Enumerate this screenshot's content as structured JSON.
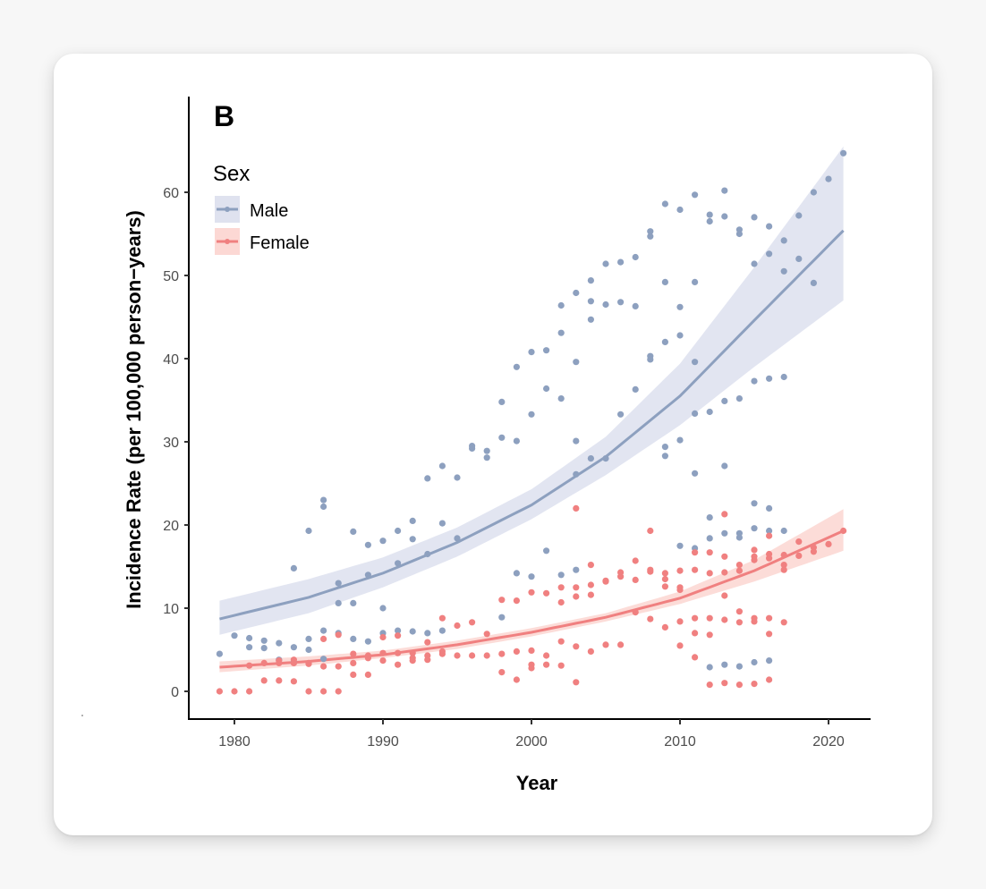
{
  "panel_tag": "B",
  "colors": {
    "male": "#8da0bf",
    "male_ribbon": "#dfe2ef",
    "female": "#f08080",
    "female_ribbon": "#fcd8d4",
    "axis": "#000000",
    "tick_text": "#4d4d4d"
  },
  "chart_data": {
    "type": "scatter",
    "title": "",
    "xlabel": "Year",
    "ylabel": "Incidence Rate (per 100,000 person−years)",
    "xlim": [
      1977.5,
      2022.5
    ],
    "ylim": [
      -3.2,
      71
    ],
    "x_ticks": [
      1980,
      1990,
      2000,
      2010,
      2020
    ],
    "y_ticks": [
      0,
      10,
      20,
      30,
      40,
      50,
      60
    ],
    "grid": false,
    "legend": {
      "title": "Sex",
      "position": "top-left",
      "entries": [
        "Male",
        "Female"
      ]
    },
    "series": [
      {
        "name": "Male",
        "points": [
          [
            1979,
            4.5
          ],
          [
            1980,
            6.7
          ],
          [
            1981,
            6.4
          ],
          [
            1981,
            5.3
          ],
          [
            1982,
            6.1
          ],
          [
            1982,
            5.2
          ],
          [
            1983,
            5.8
          ],
          [
            1983,
            3.8
          ],
          [
            1984,
            14.8
          ],
          [
            1984,
            5.3
          ],
          [
            1984,
            3.5
          ],
          [
            1985,
            19.3
          ],
          [
            1985,
            6.3
          ],
          [
            1985,
            5.0
          ],
          [
            1986,
            23.0
          ],
          [
            1986,
            22.2
          ],
          [
            1986,
            7.3
          ],
          [
            1986,
            3.9
          ],
          [
            1987,
            13.0
          ],
          [
            1987,
            10.6
          ],
          [
            1987,
            7.0
          ],
          [
            1988,
            19.2
          ],
          [
            1988,
            10.6
          ],
          [
            1988,
            6.3
          ],
          [
            1989,
            17.6
          ],
          [
            1989,
            14.0
          ],
          [
            1989,
            6.0
          ],
          [
            1990,
            18.1
          ],
          [
            1990,
            10.0
          ],
          [
            1990,
            7.0
          ],
          [
            1991,
            19.3
          ],
          [
            1991,
            15.4
          ],
          [
            1991,
            7.3
          ],
          [
            1992,
            20.5
          ],
          [
            1992,
            18.3
          ],
          [
            1992,
            7.2
          ],
          [
            1993,
            25.6
          ],
          [
            1993,
            16.5
          ],
          [
            1993,
            7.0
          ],
          [
            1994,
            27.1
          ],
          [
            1994,
            20.2
          ],
          [
            1994,
            7.3
          ],
          [
            1995,
            25.7
          ],
          [
            1995,
            18.4
          ],
          [
            1996,
            29.5
          ],
          [
            1996,
            29.2
          ],
          [
            1997,
            28.9
          ],
          [
            1997,
            28.1
          ],
          [
            1998,
            34.8
          ],
          [
            1998,
            30.5
          ],
          [
            1998,
            8.9
          ],
          [
            1999,
            39.0
          ],
          [
            1999,
            30.1
          ],
          [
            1999,
            14.2
          ],
          [
            2000,
            40.8
          ],
          [
            2000,
            33.3
          ],
          [
            2000,
            13.8
          ],
          [
            2001,
            41.0
          ],
          [
            2001,
            36.4
          ],
          [
            2001,
            16.9
          ],
          [
            2002,
            46.4
          ],
          [
            2002,
            43.1
          ],
          [
            2002,
            35.2
          ],
          [
            2002,
            14.0
          ],
          [
            2003,
            47.9
          ],
          [
            2003,
            39.6
          ],
          [
            2003,
            30.1
          ],
          [
            2003,
            26.1
          ],
          [
            2003,
            14.6
          ],
          [
            2004,
            49.4
          ],
          [
            2004,
            46.9
          ],
          [
            2004,
            44.7
          ],
          [
            2004,
            28.0
          ],
          [
            2005,
            51.4
          ],
          [
            2005,
            46.5
          ],
          [
            2005,
            28.0
          ],
          [
            2006,
            51.6
          ],
          [
            2006,
            46.8
          ],
          [
            2006,
            33.3
          ],
          [
            2007,
            52.2
          ],
          [
            2007,
            46.3
          ],
          [
            2007,
            36.3
          ],
          [
            2008,
            55.3
          ],
          [
            2008,
            54.7
          ],
          [
            2008,
            40.3
          ],
          [
            2008,
            39.9
          ],
          [
            2009,
            58.6
          ],
          [
            2009,
            49.2
          ],
          [
            2009,
            42.0
          ],
          [
            2009,
            29.4
          ],
          [
            2009,
            28.3
          ],
          [
            2010,
            57.9
          ],
          [
            2010,
            46.2
          ],
          [
            2010,
            42.8
          ],
          [
            2010,
            30.2
          ],
          [
            2010,
            17.5
          ],
          [
            2011,
            59.7
          ],
          [
            2011,
            49.2
          ],
          [
            2011,
            39.6
          ],
          [
            2011,
            33.4
          ],
          [
            2011,
            26.2
          ],
          [
            2011,
            17.2
          ],
          [
            2012,
            57.3
          ],
          [
            2012,
            56.5
          ],
          [
            2012,
            33.6
          ],
          [
            2012,
            20.9
          ],
          [
            2012,
            18.4
          ],
          [
            2012,
            2.9
          ],
          [
            2013,
            60.2
          ],
          [
            2013,
            57.1
          ],
          [
            2013,
            34.9
          ],
          [
            2013,
            27.1
          ],
          [
            2013,
            19.0
          ],
          [
            2013,
            3.2
          ],
          [
            2014,
            55.5
          ],
          [
            2014,
            55.0
          ],
          [
            2014,
            35.2
          ],
          [
            2014,
            19.0
          ],
          [
            2014,
            18.5
          ],
          [
            2014,
            3.0
          ],
          [
            2015,
            57.0
          ],
          [
            2015,
            51.4
          ],
          [
            2015,
            37.3
          ],
          [
            2015,
            22.6
          ],
          [
            2015,
            19.6
          ],
          [
            2015,
            3.5
          ],
          [
            2016,
            55.9
          ],
          [
            2016,
            52.6
          ],
          [
            2016,
            37.6
          ],
          [
            2016,
            22.0
          ],
          [
            2016,
            19.3
          ],
          [
            2016,
            3.7
          ],
          [
            2017,
            54.2
          ],
          [
            2017,
            50.5
          ],
          [
            2017,
            37.8
          ],
          [
            2017,
            19.3
          ],
          [
            2018,
            57.2
          ],
          [
            2018,
            52.0
          ],
          [
            2019,
            60.0
          ],
          [
            2019,
            49.1
          ],
          [
            2020,
            61.6
          ],
          [
            2021,
            64.7
          ]
        ],
        "fit": {
          "x": [
            1979,
            1985,
            1990,
            1995,
            2000,
            2005,
            2010,
            2015,
            2021
          ],
          "y": [
            8.7,
            11.3,
            14.2,
            17.9,
            22.4,
            28.2,
            35.5,
            44.6,
            55.4
          ],
          "lower": [
            6.8,
            9.4,
            12.5,
            16.2,
            20.7,
            26.0,
            32.0,
            39.0,
            47.0
          ],
          "upper": [
            10.9,
            13.5,
            16.1,
            19.7,
            24.3,
            30.6,
            39.4,
            51.0,
            65.5
          ]
        }
      },
      {
        "name": "Female",
        "points": [
          [
            1979,
            0.0
          ],
          [
            1980,
            0.0
          ],
          [
            1981,
            0.0
          ],
          [
            1981,
            3.1
          ],
          [
            1982,
            3.4
          ],
          [
            1982,
            1.3
          ],
          [
            1983,
            3.4
          ],
          [
            1983,
            3.7
          ],
          [
            1983,
            1.3
          ],
          [
            1984,
            3.4
          ],
          [
            1984,
            3.8
          ],
          [
            1984,
            1.2
          ],
          [
            1985,
            3.4
          ],
          [
            1985,
            3.3
          ],
          [
            1985,
            0.0
          ],
          [
            1986,
            6.3
          ],
          [
            1986,
            3.0
          ],
          [
            1986,
            0.0
          ],
          [
            1987,
            3.0
          ],
          [
            1987,
            6.8
          ],
          [
            1987,
            0.0
          ],
          [
            1988,
            4.5
          ],
          [
            1988,
            3.4
          ],
          [
            1988,
            2.0
          ],
          [
            1989,
            4.3
          ],
          [
            1989,
            4.0
          ],
          [
            1989,
            2.0
          ],
          [
            1990,
            6.5
          ],
          [
            1990,
            4.6
          ],
          [
            1990,
            3.7
          ],
          [
            1991,
            6.7
          ],
          [
            1991,
            4.6
          ],
          [
            1991,
            3.2
          ],
          [
            1992,
            4.6
          ],
          [
            1992,
            4.0
          ],
          [
            1992,
            3.7
          ],
          [
            1993,
            5.9
          ],
          [
            1993,
            4.3
          ],
          [
            1993,
            3.8
          ],
          [
            1994,
            8.8
          ],
          [
            1994,
            4.8
          ],
          [
            1994,
            4.5
          ],
          [
            1995,
            7.9
          ],
          [
            1995,
            4.3
          ],
          [
            1996,
            8.3
          ],
          [
            1996,
            4.3
          ],
          [
            1997,
            6.9
          ],
          [
            1997,
            4.3
          ],
          [
            1998,
            11.0
          ],
          [
            1998,
            4.5
          ],
          [
            1998,
            2.3
          ],
          [
            1999,
            10.9
          ],
          [
            1999,
            4.8
          ],
          [
            1999,
            1.4
          ],
          [
            2000,
            11.9
          ],
          [
            2000,
            4.9
          ],
          [
            2000,
            3.2
          ],
          [
            2000,
            2.8
          ],
          [
            2001,
            11.8
          ],
          [
            2001,
            4.3
          ],
          [
            2001,
            3.2
          ],
          [
            2002,
            12.5
          ],
          [
            2002,
            10.7
          ],
          [
            2002,
            6.0
          ],
          [
            2002,
            3.1
          ],
          [
            2003,
            22.0
          ],
          [
            2003,
            12.5
          ],
          [
            2003,
            11.4
          ],
          [
            2003,
            5.4
          ],
          [
            2003,
            1.1
          ],
          [
            2004,
            15.2
          ],
          [
            2004,
            12.8
          ],
          [
            2004,
            11.6
          ],
          [
            2004,
            4.8
          ],
          [
            2005,
            13.2
          ],
          [
            2005,
            13.3
          ],
          [
            2005,
            5.6
          ],
          [
            2006,
            14.3
          ],
          [
            2006,
            13.8
          ],
          [
            2006,
            5.6
          ],
          [
            2007,
            15.7
          ],
          [
            2007,
            13.4
          ],
          [
            2007,
            9.5
          ],
          [
            2008,
            19.3
          ],
          [
            2008,
            14.4
          ],
          [
            2008,
            14.6
          ],
          [
            2008,
            8.7
          ],
          [
            2009,
            14.2
          ],
          [
            2009,
            13.5
          ],
          [
            2009,
            12.6
          ],
          [
            2009,
            7.7
          ],
          [
            2010,
            14.5
          ],
          [
            2010,
            12.5
          ],
          [
            2010,
            12.2
          ],
          [
            2010,
            8.4
          ],
          [
            2010,
            5.5
          ],
          [
            2011,
            16.7
          ],
          [
            2011,
            14.6
          ],
          [
            2011,
            8.8
          ],
          [
            2011,
            7.0
          ],
          [
            2011,
            4.1
          ],
          [
            2012,
            16.7
          ],
          [
            2012,
            14.2
          ],
          [
            2012,
            8.8
          ],
          [
            2012,
            6.8
          ],
          [
            2012,
            0.8
          ],
          [
            2013,
            21.3
          ],
          [
            2013,
            16.2
          ],
          [
            2013,
            14.3
          ],
          [
            2013,
            11.5
          ],
          [
            2013,
            8.6
          ],
          [
            2013,
            1.0
          ],
          [
            2014,
            15.2
          ],
          [
            2014,
            14.5
          ],
          [
            2014,
            9.6
          ],
          [
            2014,
            8.3
          ],
          [
            2014,
            0.8
          ],
          [
            2015,
            17.0
          ],
          [
            2015,
            16.2
          ],
          [
            2015,
            15.8
          ],
          [
            2015,
            8.8
          ],
          [
            2015,
            8.4
          ],
          [
            2015,
            0.9
          ],
          [
            2016,
            18.7
          ],
          [
            2016,
            16.5
          ],
          [
            2016,
            16.0
          ],
          [
            2016,
            8.8
          ],
          [
            2016,
            6.9
          ],
          [
            2016,
            1.4
          ],
          [
            2017,
            16.4
          ],
          [
            2017,
            15.2
          ],
          [
            2017,
            14.6
          ],
          [
            2017,
            8.3
          ],
          [
            2018,
            18.0
          ],
          [
            2018,
            16.3
          ],
          [
            2019,
            17.3
          ],
          [
            2019,
            16.8
          ],
          [
            2020,
            17.7
          ],
          [
            2021,
            19.3
          ]
        ],
        "fit": {
          "x": [
            1979,
            1985,
            1990,
            1995,
            2000,
            2005,
            2010,
            2015,
            2021
          ],
          "y": [
            2.9,
            3.6,
            4.4,
            5.6,
            7.1,
            8.9,
            11.2,
            14.5,
            19.3
          ],
          "lower": [
            2.3,
            3.1,
            4.0,
            5.1,
            6.6,
            8.4,
            10.5,
            13.2,
            16.9
          ],
          "upper": [
            3.6,
            4.2,
            4.9,
            6.1,
            7.6,
            9.4,
            12.0,
            15.8,
            21.9
          ]
        }
      }
    ]
  }
}
